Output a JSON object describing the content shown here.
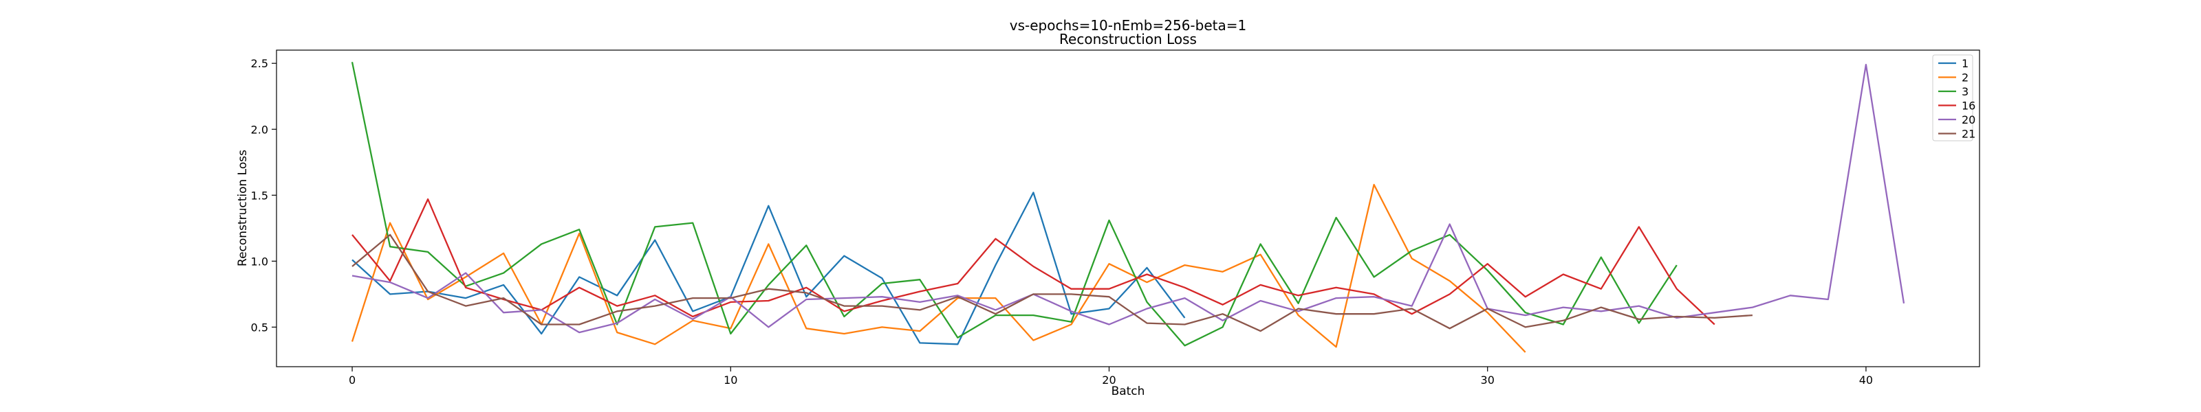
{
  "chart_data": {
    "type": "line",
    "title": "vs-epochs=10-nEmb=256-beta=1",
    "subtitle": "Reconstruction Loss",
    "xlabel": "Batch",
    "ylabel": "Reconstruction Loss",
    "xlim": [
      -2,
      43
    ],
    "ylim": [
      0.2,
      2.6
    ],
    "xticks": [
      "0",
      "10",
      "20",
      "30",
      "40"
    ],
    "xtick_values": [
      0,
      10,
      20,
      30,
      40
    ],
    "yticks": [
      "0.5",
      "1.0",
      "1.5",
      "2.0",
      "2.5"
    ],
    "ytick_values": [
      0.5,
      1.0,
      1.5,
      2.0,
      2.5
    ],
    "grid": false,
    "legend_position": "top-right",
    "series": [
      {
        "name": "1",
        "color": "#1f77b4",
        "x": [
          0,
          1,
          2,
          3,
          4,
          5,
          6,
          7,
          8,
          9,
          10,
          11,
          12,
          13,
          14,
          15,
          16,
          17,
          18,
          19,
          20,
          21,
          22
        ],
        "values": [
          1.01,
          0.75,
          0.77,
          0.72,
          0.82,
          0.45,
          0.88,
          0.74,
          1.16,
          0.62,
          0.73,
          1.42,
          0.73,
          1.04,
          0.87,
          0.38,
          0.37,
          0.97,
          1.52,
          0.6,
          0.64,
          0.95,
          0.57
        ]
      },
      {
        "name": "2",
        "color": "#ff7f0e",
        "x": [
          0,
          1,
          2,
          3,
          4,
          5,
          6,
          7,
          8,
          9,
          10,
          11,
          12,
          13,
          14,
          15,
          16,
          17,
          18,
          19,
          20,
          21,
          22,
          23,
          24,
          25,
          26,
          27,
          28,
          29,
          30,
          31
        ],
        "values": [
          0.39,
          1.29,
          0.71,
          0.88,
          1.06,
          0.52,
          1.21,
          0.46,
          0.37,
          0.55,
          0.49,
          1.13,
          0.49,
          0.45,
          0.5,
          0.47,
          0.72,
          0.72,
          0.4,
          0.52,
          0.98,
          0.84,
          0.97,
          0.92,
          1.05,
          0.59,
          0.35,
          1.58,
          1.02,
          0.85,
          0.61,
          0.31
        ]
      },
      {
        "name": "3",
        "color": "#2ca02c",
        "x": [
          0,
          1,
          2,
          3,
          4,
          5,
          6,
          7,
          8,
          9,
          10,
          11,
          12,
          13,
          14,
          15,
          16,
          17,
          18,
          19,
          20,
          21,
          22,
          23,
          24,
          25,
          26,
          27,
          28,
          29,
          30,
          31,
          32,
          33,
          34,
          35
        ],
        "values": [
          2.51,
          1.11,
          1.07,
          0.81,
          0.91,
          1.13,
          1.24,
          0.52,
          1.26,
          1.29,
          0.45,
          0.82,
          1.12,
          0.58,
          0.83,
          0.86,
          0.42,
          0.59,
          0.59,
          0.54,
          1.31,
          0.69,
          0.36,
          0.5,
          1.13,
          0.68,
          1.33,
          0.88,
          1.08,
          1.2,
          0.93,
          0.61,
          0.52,
          1.03,
          0.53,
          0.97
        ]
      },
      {
        "name": "16",
        "color": "#d62728",
        "x": [
          0,
          1,
          2,
          3,
          4,
          5,
          6,
          7,
          8,
          9,
          10,
          11,
          12,
          13,
          14,
          15,
          16,
          17,
          18,
          19,
          20,
          21,
          22,
          23,
          24,
          25,
          26,
          27,
          28,
          29,
          30,
          31,
          32,
          33,
          34,
          35,
          36
        ],
        "values": [
          1.2,
          0.85,
          1.47,
          0.8,
          0.71,
          0.63,
          0.8,
          0.66,
          0.74,
          0.58,
          0.69,
          0.7,
          0.8,
          0.62,
          0.7,
          0.77,
          0.83,
          1.17,
          0.96,
          0.79,
          0.79,
          0.9,
          0.8,
          0.67,
          0.82,
          0.74,
          0.8,
          0.75,
          0.6,
          0.75,
          0.98,
          0.73,
          0.9,
          0.79,
          1.26,
          0.79,
          0.52
        ]
      },
      {
        "name": "20",
        "color": "#9467bd",
        "x": [
          0,
          1,
          2,
          3,
          4,
          5,
          6,
          7,
          8,
          9,
          10,
          11,
          12,
          13,
          14,
          15,
          16,
          17,
          18,
          19,
          20,
          21,
          22,
          23,
          24,
          25,
          26,
          27,
          28,
          29,
          30,
          31,
          32,
          33,
          34,
          35,
          36,
          37,
          38,
          39,
          40,
          41
        ],
        "values": [
          0.89,
          0.84,
          0.72,
          0.91,
          0.61,
          0.63,
          0.46,
          0.53,
          0.71,
          0.56,
          0.73,
          0.5,
          0.71,
          0.72,
          0.73,
          0.69,
          0.74,
          0.63,
          0.75,
          0.62,
          0.52,
          0.64,
          0.72,
          0.55,
          0.7,
          0.62,
          0.72,
          0.73,
          0.66,
          1.28,
          0.64,
          0.59,
          0.65,
          0.62,
          0.66,
          0.57,
          0.61,
          0.65,
          0.74,
          0.71,
          2.49,
          0.68
        ]
      },
      {
        "name": "21",
        "color": "#8c564b",
        "x": [
          0,
          1,
          2,
          3,
          4,
          5,
          6,
          7,
          8,
          9,
          10,
          11,
          12,
          13,
          14,
          15,
          16,
          17,
          18,
          19,
          20,
          21,
          22,
          23,
          24,
          25,
          26,
          27,
          28,
          29,
          30,
          31,
          32,
          33,
          34,
          35,
          36,
          37
        ],
        "values": [
          0.96,
          1.2,
          0.77,
          0.66,
          0.72,
          0.52,
          0.52,
          0.62,
          0.66,
          0.72,
          0.72,
          0.79,
          0.76,
          0.66,
          0.66,
          0.63,
          0.73,
          0.6,
          0.75,
          0.75,
          0.73,
          0.53,
          0.52,
          0.6,
          0.47,
          0.64,
          0.6,
          0.6,
          0.64,
          0.49,
          0.64,
          0.5,
          0.55,
          0.65,
          0.56,
          0.58,
          0.57,
          0.59
        ]
      }
    ]
  }
}
